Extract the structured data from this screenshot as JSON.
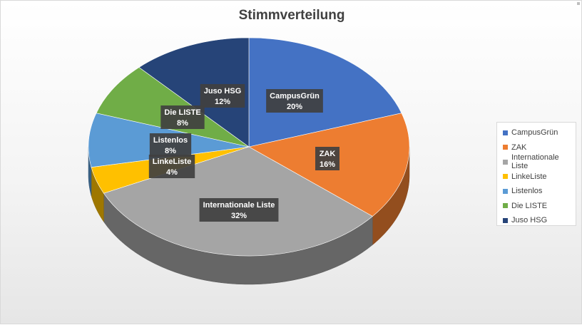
{
  "chart_data": {
    "type": "pie",
    "title": "Stimmverteilung",
    "categories": [
      "CampusGrün",
      "ZAK",
      "Internationale Liste",
      "LinkeListe",
      "Listenlos",
      "Die LISTE",
      "Juso HSG"
    ],
    "values": [
      20,
      16,
      32,
      4,
      8,
      8,
      12
    ],
    "data_labels": [
      "20%",
      "16%",
      "32%",
      "4%",
      "8%",
      "8%",
      "12%"
    ],
    "colors": [
      "#4472C4",
      "#ED7D31",
      "#A5A5A5",
      "#FFC000",
      "#5B9BD5",
      "#70AD47",
      "#264478"
    ],
    "legend_position": "right",
    "three_d": true
  }
}
